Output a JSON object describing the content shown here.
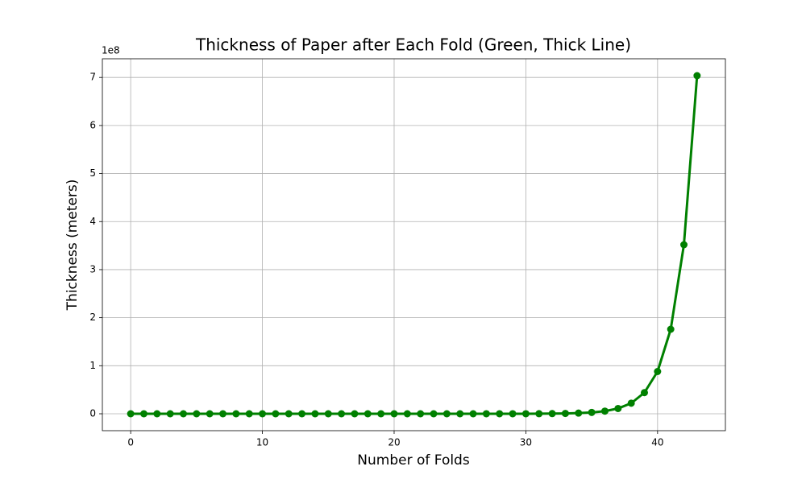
{
  "chart_data": {
    "type": "line",
    "title": "Thickness of Paper after Each Fold (Green, Thick Line)",
    "x_label": "Number of Folds",
    "y_label": "Thickness (meters)",
    "y_offset_label": "1e8",
    "x": [
      0,
      1,
      2,
      3,
      4,
      5,
      6,
      7,
      8,
      9,
      10,
      11,
      12,
      13,
      14,
      15,
      16,
      17,
      18,
      19,
      20,
      21,
      22,
      23,
      24,
      25,
      26,
      27,
      28,
      29,
      30,
      31,
      32,
      33,
      34,
      35,
      36,
      37,
      38,
      39,
      40,
      41,
      42,
      43
    ],
    "series": [
      {
        "name": "Thickness",
        "color": "#008000",
        "values": [
          8e-05,
          0.00016,
          0.00032,
          0.00064,
          0.00128,
          0.00256,
          0.00512,
          0.01024,
          0.02048,
          0.04096,
          0.08192,
          0.16384,
          0.32768,
          0.65536,
          1.31072,
          2.62144,
          5.24288,
          10.48576,
          20.97152,
          41.94304,
          83.88608,
          167.77216,
          335.54432,
          671.08864,
          1342.17728,
          2684.35456,
          5368.70912,
          10737.41824,
          21474.83648,
          42949.67296,
          85899.34592,
          171798.69184,
          343597.38368,
          687194.76736,
          1374389.53472,
          2748779.06944,
          5497558.13888,
          10995116.27776,
          21990232.55552,
          43980465.11104,
          87960930.22208,
          175921860.44416,
          351843720.88832,
          703687441.77664
        ]
      }
    ],
    "xlim": [
      -2.15,
      45.15
    ],
    "xticks": [
      0,
      10,
      20,
      30,
      40
    ],
    "ylim": [
      -35184372,
      738871814
    ],
    "yticks": [
      0,
      {
        "value": 100000000,
        "label": "1"
      },
      {
        "value": 200000000,
        "label": "2"
      },
      {
        "value": 300000000,
        "label": "3"
      },
      {
        "value": 400000000,
        "label": "4"
      },
      {
        "value": 500000000,
        "label": "5"
      },
      {
        "value": 600000000,
        "label": "6"
      },
      {
        "value": 700000000,
        "label": "7"
      }
    ],
    "grid": true
  }
}
